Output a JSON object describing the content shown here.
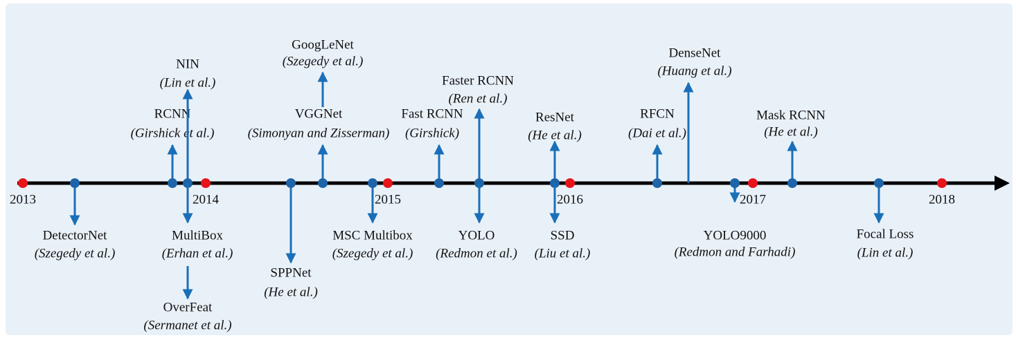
{
  "years": [
    "2013",
    "2014",
    "2015",
    "2016",
    "2017",
    "2018"
  ],
  "events": [
    {
      "name": "DetectorNet",
      "authors": "(Szegedy et al.)"
    },
    {
      "name": "RCNN",
      "authors": "(Girshick et al.)"
    },
    {
      "name": "NIN",
      "authors": "(Lin et al.)"
    },
    {
      "name": "MultiBox",
      "authors": "(Erhan et al.)"
    },
    {
      "name": "OverFeat",
      "authors": "(Sermanet et al.)"
    },
    {
      "name": "SPPNet",
      "authors": "(He et al.)"
    },
    {
      "name": "VGGNet",
      "authors": "(Simonyan and Zisserman)"
    },
    {
      "name": "GoogLeNet",
      "authors": "(Szegedy et al.)"
    },
    {
      "name": "MSC Multibox",
      "authors": "(Szegedy et al.)"
    },
    {
      "name": "Fast RCNN",
      "authors": "(Girshick)"
    },
    {
      "name": "Faster RCNN",
      "authors": "(Ren et al.)"
    },
    {
      "name": "YOLO",
      "authors": "(Redmon et al.)"
    },
    {
      "name": "ResNet",
      "authors": "(He et al.)"
    },
    {
      "name": "SSD",
      "authors": "(Liu et al.)"
    },
    {
      "name": "RFCN",
      "authors": "(Dai et al.)"
    },
    {
      "name": "DenseNet",
      "authors": "(Huang et al.)"
    },
    {
      "name": "YOLO9000",
      "authors": "(Redmon and Farhadi)"
    },
    {
      "name": "Mask RCNN",
      "authors": "(He et al.)"
    },
    {
      "name": "Focal Loss",
      "authors": "(Lin et al.)"
    }
  ]
}
